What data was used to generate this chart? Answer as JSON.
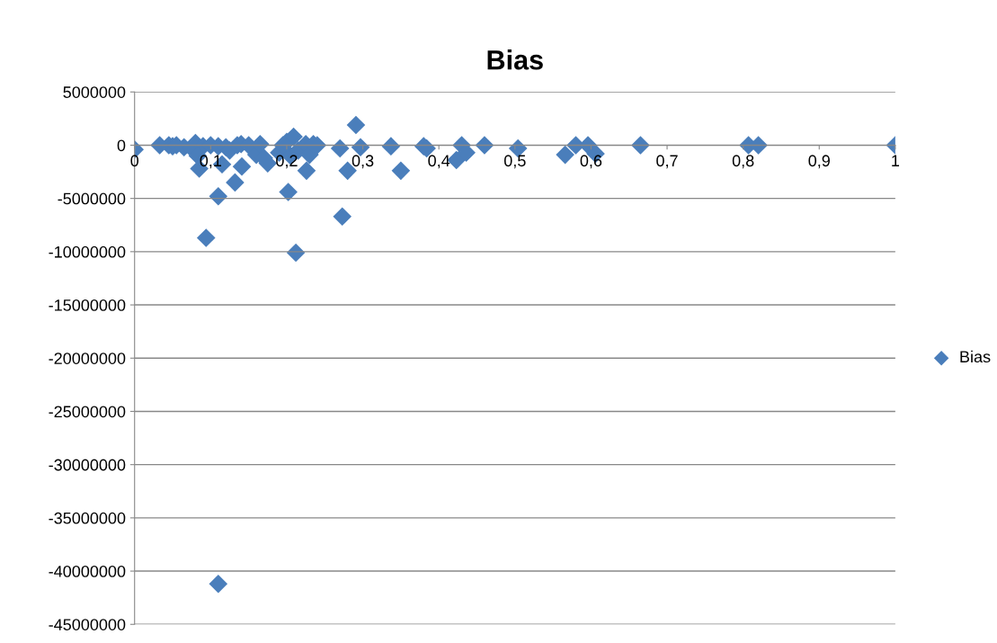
{
  "chart_data": {
    "type": "scatter",
    "title": "Bias",
    "legend": "right",
    "grid": "y",
    "marker": "diamond",
    "xlim": [
      0,
      1
    ],
    "ylim": [
      -45000000,
      5000000
    ],
    "xticks": [
      0,
      {
        "value": 0.1,
        "label": "0,1"
      },
      {
        "value": 0.2,
        "label": "0,2"
      },
      {
        "value": 0.3,
        "label": "0,3"
      },
      {
        "value": 0.4,
        "label": "0,4"
      },
      {
        "value": 0.5,
        "label": "0,5"
      },
      {
        "value": 0.6,
        "label": "0,6"
      },
      {
        "value": 0.7,
        "label": "0,7"
      },
      {
        "value": 0.8,
        "label": "0,8"
      },
      {
        "value": 0.9,
        "label": "0,9"
      },
      1
    ],
    "yticks": [
      -45000000,
      -40000000,
      -35000000,
      -30000000,
      -25000000,
      -20000000,
      -15000000,
      -10000000,
      -5000000,
      0,
      5000000
    ],
    "series": [
      {
        "name": "Bias",
        "color": "#4a7ebb",
        "x": [
          0,
          0.033,
          0.045,
          0.05,
          0.055,
          0.065,
          0.075,
          0.08,
          0.09,
          0.083,
          0.085,
          0.094,
          0.1,
          0.11,
          0.115,
          0.11,
          0.11,
          0.12,
          0.125,
          0.132,
          0.135,
          0.14,
          0.141,
          0.15,
          0.16,
          0.165,
          0.17,
          0.175,
          0.19,
          0.195,
          0.2,
          0.202,
          0.209,
          0.205,
          0.212,
          0.215,
          0.225,
          0.226,
          0.23,
          0.235,
          0.24,
          0.27,
          0.273,
          0.28,
          0.291,
          0.297,
          0.337,
          0.35,
          0.38,
          0.384,
          0.423,
          0.43,
          0.436,
          0.46,
          0.504,
          0.566,
          0.58,
          0.596,
          0.606,
          0.665,
          0.807,
          0.82,
          1.0
        ],
        "values": [
          -400000,
          0,
          0,
          -100000,
          0,
          -200000,
          -300000,
          200000,
          -100000,
          -1000000,
          -2200000,
          -8700000,
          0,
          -100000,
          -1800000,
          -4800000,
          -41200000,
          -200000,
          -500000,
          -3500000,
          0,
          100000,
          -2000000,
          0,
          -900000,
          100000,
          -1200000,
          -1700000,
          -700000,
          0,
          300000,
          -4400000,
          800000,
          -1000000,
          -10100000,
          -500000,
          100000,
          -2400000,
          -900000,
          100000,
          0,
          -300000,
          -6700000,
          -2400000,
          1900000,
          -200000,
          -100000,
          -2400000,
          -100000,
          -300000,
          -1400000,
          0,
          -700000,
          0,
          -300000,
          -900000,
          0,
          0,
          -800000,
          0,
          0,
          0,
          0
        ]
      }
    ]
  }
}
